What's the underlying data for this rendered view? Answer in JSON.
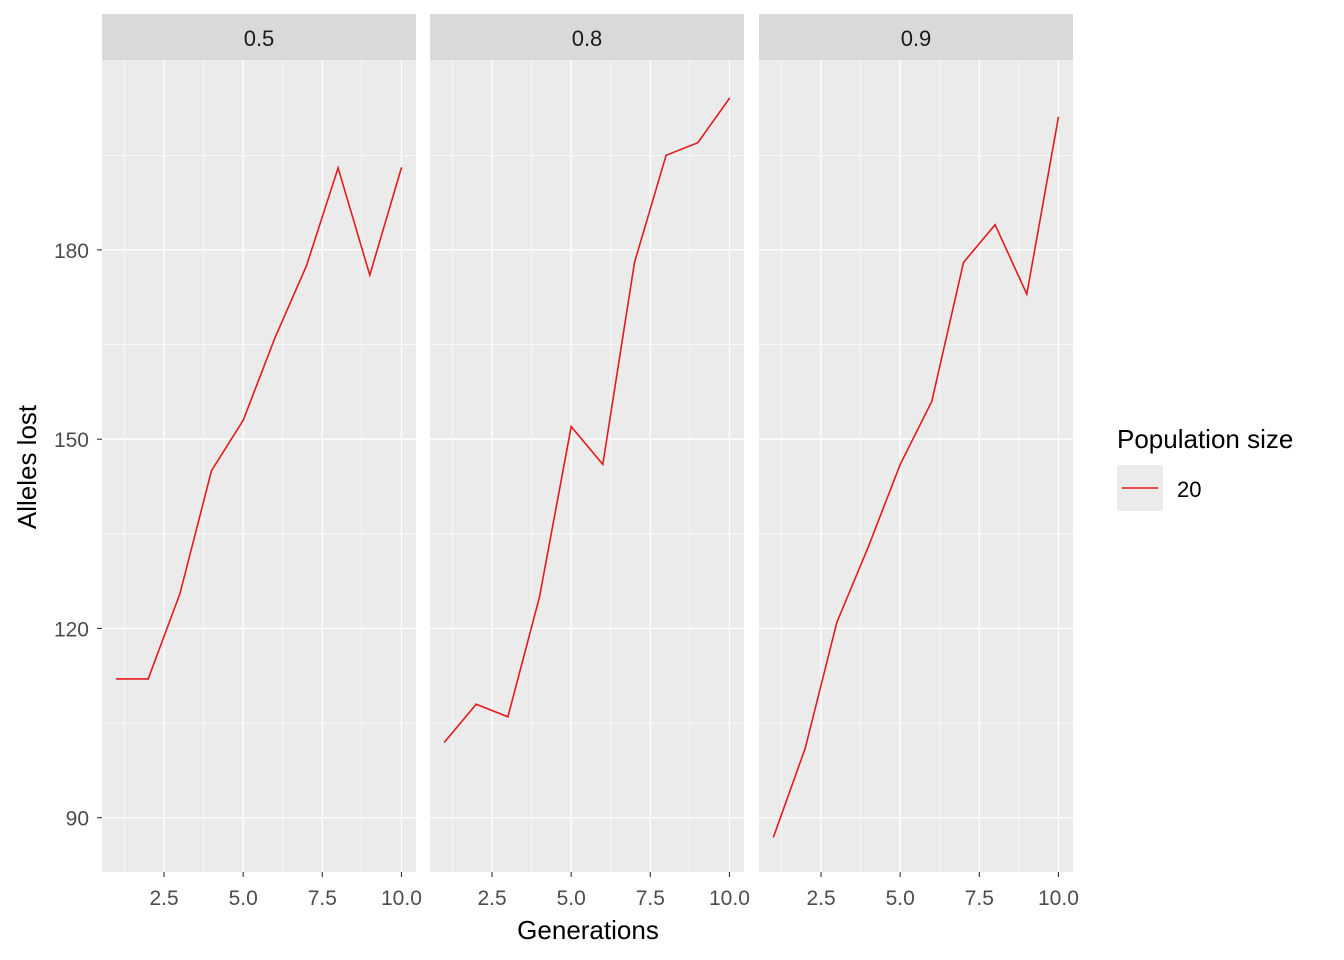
{
  "chart_data": {
    "type": "line",
    "facets": [
      "0.5",
      "0.8",
      "0.9"
    ],
    "x": [
      1,
      2,
      3,
      4,
      5,
      6,
      7,
      8,
      9,
      10
    ],
    "panels": [
      {
        "facet": "0.5",
        "values": [
          112,
          112,
          125.5,
          145,
          153,
          166,
          177.5,
          193,
          176,
          193
        ]
      },
      {
        "facet": "0.8",
        "values": [
          102,
          108,
          106,
          125,
          152,
          146,
          178,
          195,
          197,
          204
        ]
      },
      {
        "facet": "0.9",
        "values": [
          87,
          101,
          121,
          133,
          146,
          156,
          178,
          184,
          173,
          201
        ]
      }
    ],
    "xlabel": "Generations",
    "ylabel": "Alleles lost",
    "xlim": [
      0.54,
      10.46
    ],
    "ylim": [
      81.4,
      210.1
    ],
    "xticks": [
      2.5,
      5.0,
      7.5,
      10.0
    ],
    "xtick_labels": [
      "2.5",
      "5.0",
      "7.5",
      "10.0"
    ],
    "yticks": [
      90,
      120,
      150,
      180
    ],
    "ytick_labels": [
      "90",
      "120",
      "150",
      "180"
    ],
    "grid": true,
    "legend": {
      "title": "Population size",
      "entries": [
        "20"
      ],
      "placement": "right"
    },
    "colors": {
      "line": "#e41a1c",
      "panel_bg": "#ebebeb",
      "strip_bg": "#d9d9d9",
      "grid": "#ffffff"
    }
  }
}
